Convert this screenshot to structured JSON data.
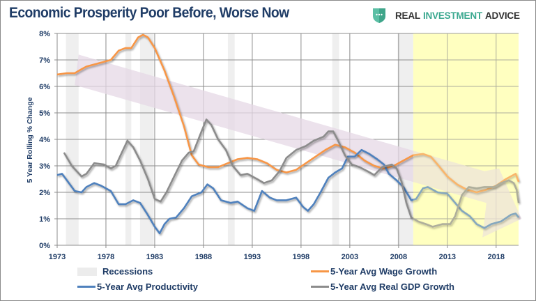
{
  "header": {
    "title": "Economic Prosperity Poor Before, Worse Now",
    "logo": {
      "word1": "REAL",
      "word2": "INVESTMENT",
      "word3": "ADVICE",
      "icon": "shield-icon"
    }
  },
  "chart_data": {
    "type": "line",
    "title": "Economic Prosperity Poor Before, Worse Now",
    "ylabel": "5 Year Rolling % Change",
    "xlabel": "",
    "xlim": [
      1973,
      2020.3
    ],
    "ylim": [
      0,
      8
    ],
    "x_ticks": [
      "1973",
      "1978",
      "1983",
      "1988",
      "1993",
      "1998",
      "2003",
      "2008",
      "2013",
      "2018"
    ],
    "y_ticks": [
      "0%",
      "1%",
      "2%",
      "3%",
      "4%",
      "5%",
      "6%",
      "7%",
      "8%"
    ],
    "grid": true,
    "legend_placement": "bottom",
    "recessions": [
      [
        1973.9,
        1975.2
      ],
      [
        1980.0,
        1980.6
      ],
      [
        1981.5,
        1982.9
      ],
      [
        1990.5,
        1991.2
      ],
      [
        2001.2,
        2001.9
      ],
      [
        2007.9,
        2009.5
      ]
    ],
    "highlight_period": [
      2009.5,
      2020.3
    ],
    "highlight_color": "#ffffc0",
    "trend_arrow": [
      [
        1975.2,
        7.2
      ],
      [
        2016.8,
        2.8
      ],
      [
        2018.3,
        2.9
      ],
      [
        2020.6,
        1.0
      ],
      [
        2016.6,
        0.3
      ],
      [
        2017.0,
        1.6
      ],
      [
        1974.8,
        6.05
      ]
    ],
    "trend_arrow_color": "#e6d8e6",
    "series": [
      {
        "name": "5-Year Avg Wage Growth",
        "color": "#f79646",
        "points": [
          [
            1973,
            6.45
          ],
          [
            1974,
            6.5
          ],
          [
            1974.8,
            6.5
          ],
          [
            1975.5,
            6.65
          ],
          [
            1976,
            6.75
          ],
          [
            1977,
            6.85
          ],
          [
            1978,
            6.95
          ],
          [
            1978.5,
            7.0
          ],
          [
            1979.3,
            7.35
          ],
          [
            1980,
            7.45
          ],
          [
            1980.6,
            7.45
          ],
          [
            1981.3,
            7.85
          ],
          [
            1981.8,
            7.95
          ],
          [
            1982.3,
            7.85
          ],
          [
            1983,
            7.45
          ],
          [
            1984,
            6.6
          ],
          [
            1985,
            5.6
          ],
          [
            1986,
            4.5
          ],
          [
            1986.8,
            3.4
          ],
          [
            1987.5,
            3.05
          ],
          [
            1988.5,
            2.95
          ],
          [
            1989.5,
            2.95
          ],
          [
            1990.5,
            3.1
          ],
          [
            1991.5,
            3.25
          ],
          [
            1992.5,
            3.3
          ],
          [
            1993.5,
            3.25
          ],
          [
            1994.5,
            3.1
          ],
          [
            1995.5,
            2.85
          ],
          [
            1996.5,
            2.75
          ],
          [
            1997.5,
            2.85
          ],
          [
            1998.5,
            3.1
          ],
          [
            1999.5,
            3.35
          ],
          [
            2000.5,
            3.6
          ],
          [
            2001.5,
            3.8
          ],
          [
            2002.5,
            3.7
          ],
          [
            2003.5,
            3.5
          ],
          [
            2004.5,
            3.2
          ],
          [
            2005.5,
            3.0
          ],
          [
            2006.5,
            2.9
          ],
          [
            2007.5,
            3.0
          ],
          [
            2008.5,
            3.2
          ],
          [
            2009.5,
            3.4
          ],
          [
            2010.5,
            3.45
          ],
          [
            2011.3,
            3.35
          ],
          [
            2012,
            3.05
          ],
          [
            2013,
            2.6
          ],
          [
            2014,
            2.3
          ],
          [
            2015,
            2.1
          ],
          [
            2016,
            2.0
          ],
          [
            2017,
            2.1
          ],
          [
            2018,
            2.25
          ],
          [
            2019,
            2.5
          ],
          [
            2020,
            2.7
          ],
          [
            2020.3,
            2.4
          ]
        ]
      },
      {
        "name": "5-Year Avg Productivity",
        "color": "#4f81bd",
        "points": [
          [
            1973,
            2.65
          ],
          [
            1973.5,
            2.7
          ],
          [
            1974,
            2.45
          ],
          [
            1974.8,
            2.05
          ],
          [
            1975.5,
            2.0
          ],
          [
            1976,
            2.2
          ],
          [
            1976.8,
            2.35
          ],
          [
            1977.5,
            2.25
          ],
          [
            1978.5,
            2.05
          ],
          [
            1979.3,
            1.55
          ],
          [
            1980,
            1.55
          ],
          [
            1980.8,
            1.7
          ],
          [
            1981.5,
            1.6
          ],
          [
            1982.2,
            1.2
          ],
          [
            1983,
            0.7
          ],
          [
            1983.5,
            0.45
          ],
          [
            1984,
            0.8
          ],
          [
            1984.5,
            1.0
          ],
          [
            1985.2,
            1.05
          ],
          [
            1986,
            1.4
          ],
          [
            1986.8,
            1.85
          ],
          [
            1987.8,
            2.0
          ],
          [
            1988.4,
            2.3
          ],
          [
            1989,
            2.15
          ],
          [
            1989.8,
            1.7
          ],
          [
            1990.8,
            1.6
          ],
          [
            1991.5,
            1.65
          ],
          [
            1992.5,
            1.4
          ],
          [
            1993.2,
            1.3
          ],
          [
            1994,
            2.05
          ],
          [
            1994.8,
            1.8
          ],
          [
            1995.5,
            1.7
          ],
          [
            1996.5,
            1.7
          ],
          [
            1997.5,
            1.8
          ],
          [
            1998.2,
            1.45
          ],
          [
            1998.7,
            1.3
          ],
          [
            1999.3,
            1.55
          ],
          [
            2000,
            2.0
          ],
          [
            2000.8,
            2.55
          ],
          [
            2001.5,
            2.75
          ],
          [
            2002.2,
            2.9
          ],
          [
            2002.8,
            3.35
          ],
          [
            2003.5,
            3.35
          ],
          [
            2004.2,
            3.6
          ],
          [
            2005,
            3.45
          ],
          [
            2005.8,
            3.25
          ],
          [
            2006.5,
            3.05
          ],
          [
            2007,
            2.7
          ],
          [
            2007.8,
            2.45
          ],
          [
            2008.5,
            2.2
          ],
          [
            2009.3,
            1.7
          ],
          [
            2009.8,
            1.75
          ],
          [
            2010.5,
            2.15
          ],
          [
            2011,
            2.2
          ],
          [
            2012,
            2.0
          ],
          [
            2013,
            1.95
          ],
          [
            2013.8,
            1.6
          ],
          [
            2014.5,
            1.3
          ],
          [
            2015.3,
            1.1
          ],
          [
            2016,
            0.8
          ],
          [
            2016.8,
            0.65
          ],
          [
            2017.5,
            0.8
          ],
          [
            2018.5,
            0.9
          ],
          [
            2019.5,
            1.15
          ],
          [
            2020,
            1.2
          ],
          [
            2020.3,
            1.05
          ]
        ]
      },
      {
        "name": "5-Year Avg Real GDP Growth",
        "color": "#8c8c8c",
        "points": [
          [
            1973.7,
            3.5
          ],
          [
            1974.5,
            3.0
          ],
          [
            1975.5,
            2.6
          ],
          [
            1976,
            2.7
          ],
          [
            1976.8,
            3.1
          ],
          [
            1977.8,
            3.05
          ],
          [
            1978.5,
            2.9
          ],
          [
            1979,
            3.0
          ],
          [
            1979.5,
            3.4
          ],
          [
            1980.2,
            3.95
          ],
          [
            1980.8,
            3.7
          ],
          [
            1981.5,
            3.2
          ],
          [
            1982.3,
            2.5
          ],
          [
            1983,
            1.75
          ],
          [
            1983.6,
            1.65
          ],
          [
            1984.2,
            2.0
          ],
          [
            1985,
            2.6
          ],
          [
            1985.8,
            3.2
          ],
          [
            1986.5,
            3.5
          ],
          [
            1987,
            3.55
          ],
          [
            1987.8,
            4.3
          ],
          [
            1988.3,
            4.75
          ],
          [
            1988.8,
            4.55
          ],
          [
            1989.5,
            4.0
          ],
          [
            1990.3,
            3.6
          ],
          [
            1991,
            3.0
          ],
          [
            1991.8,
            2.65
          ],
          [
            1992.5,
            2.7
          ],
          [
            1993.5,
            2.5
          ],
          [
            1994.2,
            2.35
          ],
          [
            1995,
            2.45
          ],
          [
            1995.8,
            2.8
          ],
          [
            1996.5,
            3.3
          ],
          [
            1997.5,
            3.6
          ],
          [
            1998.5,
            3.75
          ],
          [
            1999.3,
            3.95
          ],
          [
            2000.3,
            4.1
          ],
          [
            2000.8,
            4.3
          ],
          [
            2001.3,
            4.3
          ],
          [
            2001.8,
            3.95
          ],
          [
            2002.5,
            3.4
          ],
          [
            2003.2,
            3.05
          ],
          [
            2004,
            2.95
          ],
          [
            2004.8,
            2.8
          ],
          [
            2005.5,
            2.65
          ],
          [
            2006.3,
            2.95
          ],
          [
            2007.3,
            3.05
          ],
          [
            2007.8,
            2.9
          ],
          [
            2008.3,
            2.4
          ],
          [
            2008.8,
            1.6
          ],
          [
            2009.3,
            1.05
          ],
          [
            2010,
            0.9
          ],
          [
            2010.8,
            0.8
          ],
          [
            2011.5,
            0.7
          ],
          [
            2012.5,
            0.8
          ],
          [
            2013.3,
            0.8
          ],
          [
            2013.8,
            1.1
          ],
          [
            2014.5,
            1.9
          ],
          [
            2015.2,
            2.2
          ],
          [
            2016,
            2.15
          ],
          [
            2016.8,
            2.2
          ],
          [
            2017.8,
            2.2
          ],
          [
            2018.5,
            2.35
          ],
          [
            2019.3,
            2.45
          ],
          [
            2019.8,
            2.35
          ],
          [
            2020.1,
            2.1
          ],
          [
            2020.3,
            1.6
          ]
        ]
      }
    ]
  },
  "legend": {
    "recessions": "Recessions",
    "wage": "5-Year Avg Wage Growth",
    "productivity": "5-Year Avg Productivity",
    "gdp": "5-Year Avg Real GDP Growth"
  },
  "colors": {
    "title": "#1f3c66",
    "recession": "#ececec",
    "grid": "#8c8c8c"
  }
}
